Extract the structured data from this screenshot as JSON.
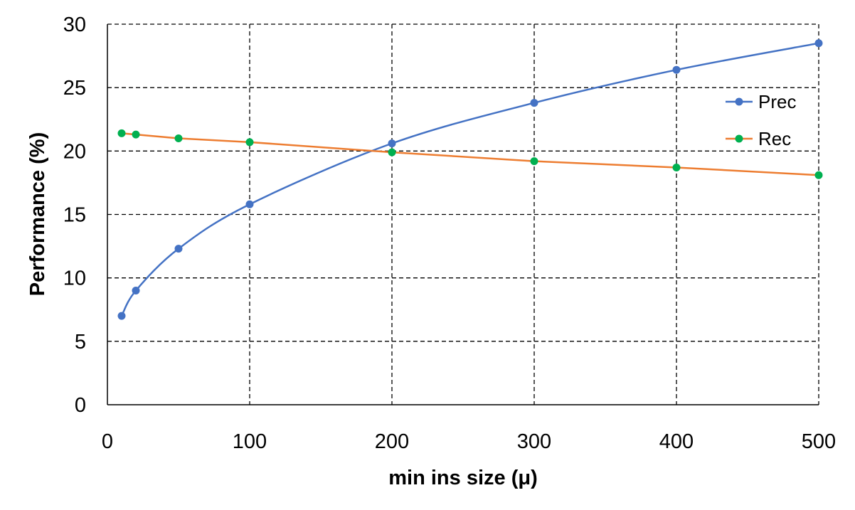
{
  "chart_data": {
    "type": "line",
    "title": "",
    "xlabel": "min ins size (μ)",
    "ylabel": "Performance (%)",
    "xlim": [
      0,
      500
    ],
    "ylim": [
      0,
      30
    ],
    "xticks": [
      0,
      100,
      200,
      300,
      400,
      500
    ],
    "yticks": [
      0,
      5,
      10,
      15,
      20,
      25,
      30
    ],
    "grid": true,
    "grid_style": "dashed",
    "legend_position": "right",
    "series": [
      {
        "name": "Prec",
        "color": "#4472c4",
        "x": [
          10,
          20,
          50,
          100,
          200,
          300,
          400,
          500
        ],
        "y": [
          7.0,
          9.0,
          12.3,
          15.8,
          20.6,
          23.8,
          26.4,
          28.5
        ]
      },
      {
        "name": "Rec",
        "color": "#ed7d31",
        "marker_color": "#00b050",
        "x": [
          10,
          20,
          50,
          100,
          200,
          300,
          400,
          500
        ],
        "y": [
          21.4,
          21.3,
          21.0,
          20.7,
          19.9,
          19.2,
          18.7,
          18.1
        ]
      }
    ]
  }
}
